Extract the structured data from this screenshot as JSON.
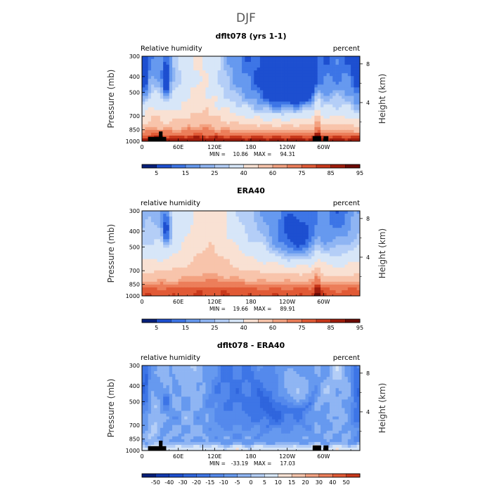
{
  "figure_title": "DJF",
  "chart_data": [
    {
      "type": "heatmap",
      "title": "dflt078 (yrs 1-1)",
      "variable_label": "Relative humidity",
      "units_label": "percent",
      "ylabel": "Pressure (mb)",
      "y2label": "Height (km)",
      "x_ticks": [
        "0",
        "60E",
        "120E",
        "180",
        "120W",
        "60W"
      ],
      "y_ticks": [
        "300",
        "400",
        "500",
        "700",
        "850",
        "1000"
      ],
      "y2_ticks": [
        "8",
        "4"
      ],
      "min": "10.86",
      "max": "94.31",
      "min_label": "MIN =",
      "max_label": "MAX =",
      "colorbar_labels": [
        "5",
        "15",
        "25",
        "40",
        "60",
        "75",
        "85",
        "95"
      ],
      "colorbar_colors": [
        "#061f7a",
        "#1d4fd0",
        "#3d75e6",
        "#6699ef",
        "#8fb5f3",
        "#b4cef7",
        "#d7e6f8",
        "#f9e1d3",
        "#f8c4ab",
        "#f3a281",
        "#ec7e5a",
        "#e15a36",
        "#c8381b",
        "#9f1c0c",
        "#6c0a05"
      ],
      "profile": "model"
    },
    {
      "type": "heatmap",
      "title": "ERA40",
      "variable_label": "relative humidity",
      "units_label": "percent",
      "ylabel": "Pressure (mb)",
      "y2label": "Height (km)",
      "x_ticks": [
        "0",
        "60E",
        "120E",
        "180",
        "120W",
        "60W"
      ],
      "y_ticks": [
        "300",
        "400",
        "500",
        "700",
        "850",
        "1000"
      ],
      "y2_ticks": [
        "8",
        "4"
      ],
      "min": "19.66",
      "max": "89.91",
      "min_label": "MIN =",
      "max_label": "MAX =",
      "colorbar_labels": [
        "5",
        "15",
        "25",
        "40",
        "60",
        "75",
        "85",
        "95"
      ],
      "colorbar_colors": [
        "#061f7a",
        "#1d4fd0",
        "#3d75e6",
        "#6699ef",
        "#8fb5f3",
        "#b4cef7",
        "#d7e6f8",
        "#f9e1d3",
        "#f8c4ab",
        "#f3a281",
        "#ec7e5a",
        "#e15a36",
        "#c8381b",
        "#9f1c0c",
        "#6c0a05"
      ],
      "profile": "obs"
    },
    {
      "type": "heatmap",
      "title": "dflt078 - ERA40",
      "variable_label": "relative humidity",
      "units_label": "percent",
      "ylabel": "Pressure (mb)",
      "y2label": "Height (km)",
      "x_ticks": [
        "0",
        "60E",
        "120E",
        "180",
        "120W",
        "60W"
      ],
      "y_ticks": [
        "300",
        "400",
        "500",
        "700",
        "850",
        "1000"
      ],
      "y2_ticks": [
        "8",
        "4"
      ],
      "min": "-33.19",
      "max": "17.03",
      "min_label": "MIN =",
      "max_label": "MAX =",
      "colorbar_labels": [
        "-50",
        "-40",
        "-30",
        "-20",
        "-15",
        "-10",
        "-5",
        "0",
        "5",
        "10",
        "15",
        "20",
        "30",
        "40",
        "50"
      ],
      "colorbar_colors": [
        "#061f7a",
        "#123ab0",
        "#1d4fd0",
        "#2f65dd",
        "#3d75e6",
        "#5489ec",
        "#6699ef",
        "#8fb5f3",
        "#b4cef7",
        "#d7e6f8",
        "#f9e1d3",
        "#f8c4ab",
        "#f3a281",
        "#ec7e5a",
        "#e15a36",
        "#c8381b"
      ],
      "profile": "diff"
    }
  ]
}
